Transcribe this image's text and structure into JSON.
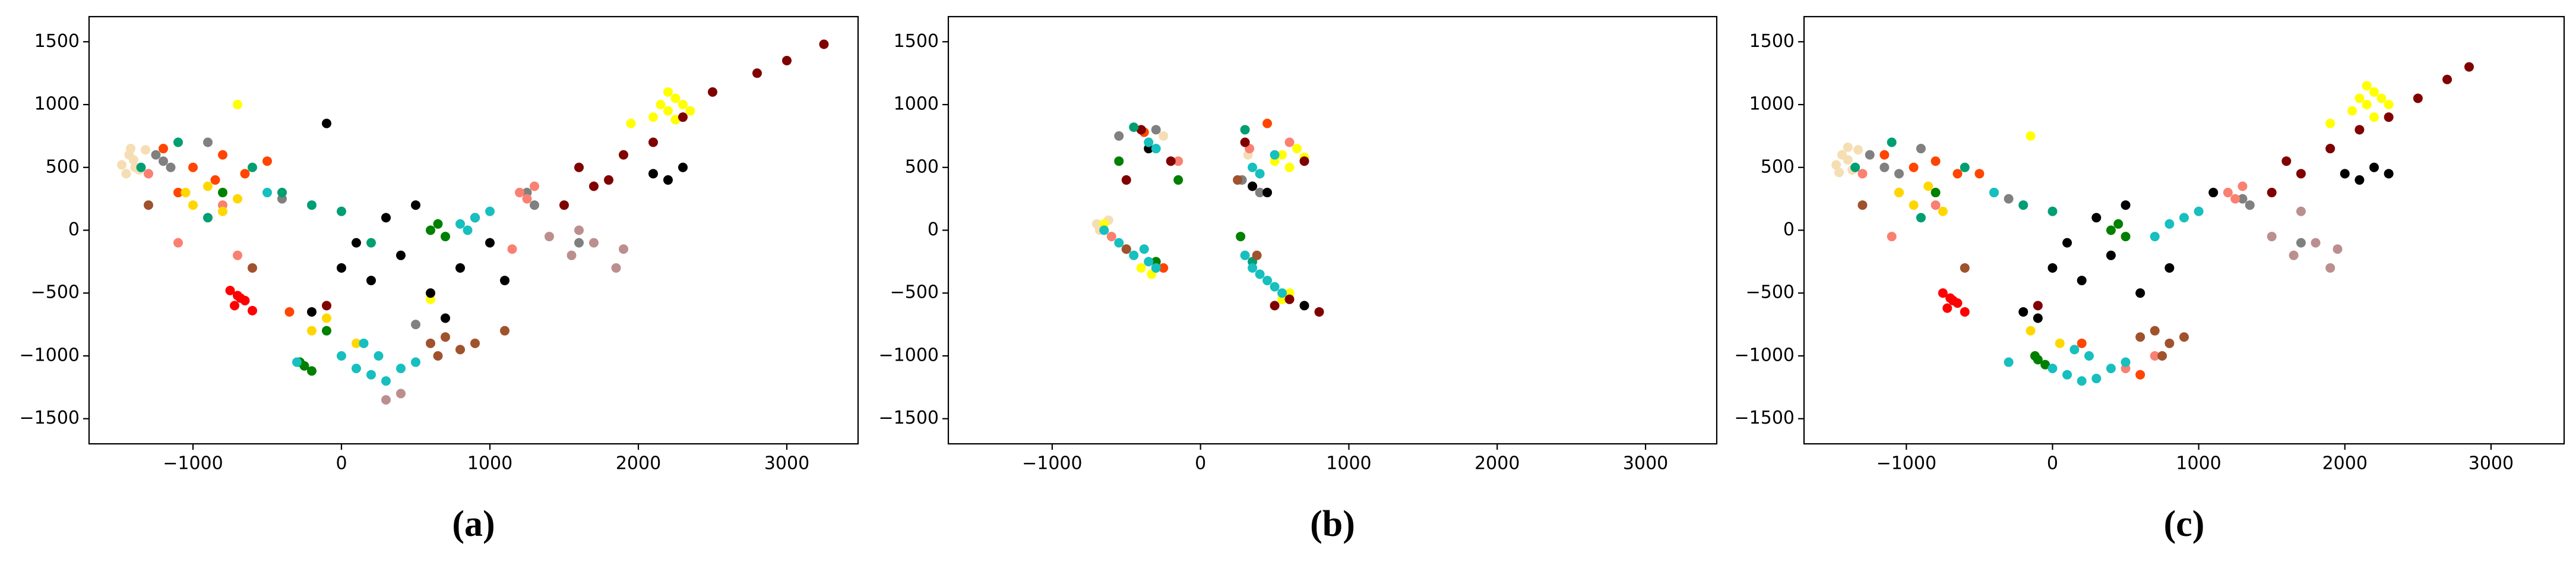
{
  "chart_data": [
    {
      "type": "scatter",
      "caption": "(a)",
      "xlim": [
        -1700,
        3480
      ],
      "ylim": [
        -1700,
        1700
      ],
      "xticks": [
        {
          "value": -1000,
          "label": "−1000"
        },
        0,
        1000,
        2000,
        3000
      ],
      "yticks": [
        {
          "value": -1500,
          "label": "−1500"
        },
        {
          "value": -1000,
          "label": "−1000"
        },
        {
          "value": -500,
          "label": "−500"
        },
        0,
        500,
        1000,
        1500
      ],
      "series": [
        {
          "color": "#f5deb3",
          "x": [
            -1480,
            -1430,
            -1400,
            -1360,
            -1320,
            -1450,
            -1390,
            -1420
          ],
          "values": [
            520,
            600,
            560,
            480,
            640,
            450,
            500,
            650
          ]
        },
        {
          "color": "#808080",
          "x": [
            -1250,
            -1200,
            -1150,
            -400,
            500,
            1250,
            1300,
            1600,
            -900
          ],
          "values": [
            600,
            550,
            500,
            250,
            -750,
            300,
            200,
            -100,
            700
          ]
        },
        {
          "color": "#fa8072",
          "x": [
            -1300,
            -1100,
            -800,
            -700,
            1200,
            1250,
            1300,
            1150
          ],
          "values": [
            450,
            -100,
            200,
            -200,
            300,
            250,
            350,
            -150
          ]
        },
        {
          "color": "#ff4500",
          "x": [
            -1200,
            -1000,
            -800,
            -650,
            -500,
            -850,
            -1100,
            -350
          ],
          "values": [
            650,
            500,
            600,
            450,
            550,
            400,
            300,
            -650
          ]
        },
        {
          "color": "#ffd700",
          "x": [
            -1050,
            -1000,
            -900,
            -800,
            -700,
            -100,
            -200,
            100
          ],
          "values": [
            300,
            200,
            350,
            150,
            250,
            -700,
            -800,
            -900
          ]
        },
        {
          "color": "#ffff00",
          "x": [
            2100,
            2150,
            2200,
            2250,
            2300,
            2350,
            2200,
            2250,
            1950,
            600,
            -700
          ],
          "values": [
            900,
            1000,
            950,
            1050,
            1000,
            950,
            1100,
            880,
            850,
            -550,
            1000
          ]
        },
        {
          "color": "#800000",
          "x": [
            1500,
            1700,
            1900,
            2100,
            2300,
            2500,
            2800,
            3000,
            3250,
            1600,
            1800,
            -100
          ],
          "values": [
            200,
            350,
            600,
            700,
            900,
            1100,
            1250,
            1350,
            1480,
            500,
            400,
            -600
          ]
        },
        {
          "color": "#000000",
          "x": [
            0,
            200,
            400,
            600,
            800,
            1000,
            300,
            500,
            700,
            2100,
            2200,
            2300,
            -200,
            100,
            900,
            1100,
            -100
          ],
          "values": [
            -300,
            -400,
            -200,
            -500,
            -300,
            -100,
            100,
            200,
            -700,
            450,
            400,
            500,
            -650,
            -100,
            100,
            -400,
            850
          ]
        },
        {
          "color": "#008000",
          "x": [
            -250,
            -200,
            -280,
            600,
            650,
            700,
            -800,
            -100
          ],
          "values": [
            -1080,
            -1120,
            -1050,
            0,
            50,
            -50,
            300,
            -800
          ]
        },
        {
          "color": "#009e73",
          "x": [
            -1350,
            -1100,
            -900,
            -600,
            -400,
            -200,
            0,
            200
          ],
          "values": [
            500,
            700,
            100,
            500,
            300,
            200,
            150,
            -100
          ]
        },
        {
          "color": "#a0522d",
          "x": [
            600,
            700,
            800,
            900,
            650,
            -1300,
            -600,
            1100
          ],
          "values": [
            -900,
            -850,
            -950,
            -900,
            -1000,
            200,
            -300,
            -800
          ]
        },
        {
          "color": "#bc8f8f",
          "x": [
            1400,
            1550,
            1700,
            1850,
            1900,
            300,
            400,
            1600
          ],
          "values": [
            -50,
            -200,
            -100,
            -300,
            -150,
            -1350,
            -1300,
            0
          ]
        },
        {
          "color": "#ff0000",
          "x": [
            -750,
            -700,
            -650,
            -720,
            -680,
            -600
          ],
          "values": [
            -480,
            -520,
            -560,
            -600,
            -540,
            -640
          ]
        },
        {
          "color": "#17bfbf",
          "x": [
            0,
            100,
            200,
            300,
            400,
            500,
            250,
            150,
            800,
            900,
            1000,
            850,
            -300,
            -500
          ],
          "values": [
            -1000,
            -1100,
            -1150,
            -1200,
            -1100,
            -1050,
            -1000,
            -900,
            50,
            100,
            150,
            0,
            -1050,
            300
          ]
        }
      ]
    },
    {
      "type": "scatter",
      "caption": "(b)",
      "xlim": [
        -1700,
        3480
      ],
      "ylim": [
        -1700,
        1700
      ],
      "xticks": [
        {
          "value": -1000,
          "label": "−1000"
        },
        0,
        1000,
        2000,
        3000
      ],
      "yticks": [
        {
          "value": -1500,
          "label": "−1500"
        },
        {
          "value": -1000,
          "label": "−1000"
        },
        {
          "value": -500,
          "label": "−500"
        },
        0,
        500,
        1000,
        1500
      ],
      "series": [
        {
          "color": "#f5deb3",
          "x": [
            -700,
            -680,
            -620,
            -250,
            320
          ],
          "values": [
            50,
            0,
            80,
            750,
            600
          ]
        },
        {
          "color": "#808080",
          "x": [
            -550,
            -300,
            280,
            400
          ],
          "values": [
            750,
            800,
            400,
            300
          ]
        },
        {
          "color": "#fa8072",
          "x": [
            -600,
            330,
            600,
            -150
          ],
          "values": [
            -50,
            650,
            700,
            550
          ]
        },
        {
          "color": "#ff4500",
          "x": [
            -380,
            450,
            -250
          ],
          "values": [
            780,
            850,
            -300
          ]
        },
        {
          "color": "#ffff00",
          "x": [
            -400,
            -330,
            500,
            550,
            600,
            650,
            700,
            -650,
            550,
            600
          ],
          "values": [
            -300,
            -350,
            550,
            600,
            500,
            650,
            580,
            50,
            -550,
            -500
          ]
        },
        {
          "color": "#800000",
          "x": [
            -400,
            -200,
            300,
            500,
            600,
            700,
            800,
            -500
          ],
          "values": [
            800,
            550,
            700,
            -600,
            -550,
            550,
            -650,
            400
          ]
        },
        {
          "color": "#000000",
          "x": [
            -350,
            350,
            450,
            700
          ],
          "values": [
            650,
            350,
            300,
            -600
          ]
        },
        {
          "color": "#008000",
          "x": [
            -300,
            -150,
            -550,
            270
          ],
          "values": [
            -250,
            400,
            550,
            -50
          ]
        },
        {
          "color": "#009e73",
          "x": [
            -450,
            300,
            -500,
            350
          ],
          "values": [
            820,
            800,
            -150,
            -250
          ]
        },
        {
          "color": "#a0522d",
          "x": [
            -500,
            250,
            380
          ],
          "values": [
            -150,
            400,
            -200
          ]
        },
        {
          "color": "#17bfbf",
          "x": [
            -650,
            -550,
            -450,
            -350,
            -300,
            -380,
            300,
            350,
            400,
            450,
            500,
            550,
            -350,
            -300,
            350,
            400,
            500
          ],
          "values": [
            0,
            -100,
            -200,
            -250,
            -300,
            -150,
            -200,
            -300,
            -350,
            -400,
            -450,
            -500,
            700,
            650,
            500,
            450,
            600
          ]
        }
      ]
    },
    {
      "type": "scatter",
      "caption": "(c)",
      "xlim": [
        -1700,
        3500
      ],
      "ylim": [
        -1700,
        1700
      ],
      "xticks": [
        {
          "value": -1000,
          "label": "−1000"
        },
        0,
        1000,
        2000,
        3000
      ],
      "yticks": [
        {
          "value": -1500,
          "label": "−1500"
        },
        {
          "value": -1000,
          "label": "−1000"
        },
        {
          "value": -500,
          "label": "−500"
        },
        0,
        500,
        1000,
        1500
      ],
      "series": [
        {
          "color": "#f5deb3",
          "x": [
            -1480,
            -1440,
            -1400,
            -1370,
            -1330,
            -1460,
            -1400
          ],
          "values": [
            520,
            600,
            560,
            480,
            640,
            460,
            660
          ]
        },
        {
          "color": "#808080",
          "x": [
            -1250,
            -1150,
            -1050,
            -300,
            1300,
            1350,
            1700,
            -900
          ],
          "values": [
            600,
            500,
            450,
            250,
            250,
            200,
            -100,
            650
          ]
        },
        {
          "color": "#fa8072",
          "x": [
            -1300,
            -1100,
            -800,
            1200,
            1250,
            1300,
            500,
            700
          ],
          "values": [
            450,
            -50,
            200,
            300,
            250,
            350,
            -1100,
            -1000
          ]
        },
        {
          "color": "#ff4500",
          "x": [
            -1150,
            -950,
            -800,
            -650,
            -500,
            -1050,
            200,
            600
          ],
          "values": [
            600,
            500,
            550,
            450,
            450,
            300,
            -900,
            -1150
          ]
        },
        {
          "color": "#ffd700",
          "x": [
            -1050,
            -950,
            -850,
            -750,
            -100,
            -150,
            50
          ],
          "values": [
            300,
            200,
            350,
            150,
            -700,
            -800,
            -900
          ]
        },
        {
          "color": "#ffff00",
          "x": [
            2050,
            2100,
            2150,
            2200,
            2250,
            2300,
            2150,
            2200,
            1900,
            -150
          ],
          "values": [
            950,
            1050,
            1000,
            1100,
            1050,
            1000,
            1150,
            900,
            850,
            750
          ]
        },
        {
          "color": "#800000",
          "x": [
            1500,
            1700,
            1900,
            2100,
            2300,
            2500,
            2700,
            2850,
            1600,
            -100
          ],
          "values": [
            300,
            450,
            650,
            800,
            900,
            1050,
            1200,
            1300,
            550,
            -600
          ]
        },
        {
          "color": "#000000",
          "x": [
            0,
            200,
            400,
            600,
            800,
            -200,
            300,
            500,
            2000,
            2100,
            2200,
            2300,
            -100,
            100,
            1100
          ],
          "values": [
            -300,
            -400,
            -200,
            -500,
            -300,
            -650,
            100,
            200,
            450,
            400,
            500,
            450,
            -700,
            -100,
            300
          ]
        },
        {
          "color": "#008000",
          "x": [
            -100,
            -50,
            -120,
            400,
            450,
            500,
            -800
          ],
          "values": [
            -1030,
            -1070,
            -1000,
            0,
            50,
            -50,
            300
          ]
        },
        {
          "color": "#009e73",
          "x": [
            -1350,
            -1100,
            -900,
            -600,
            -400,
            -200,
            0
          ],
          "values": [
            500,
            700,
            100,
            500,
            300,
            200,
            150
          ]
        },
        {
          "color": "#a0522d",
          "x": [
            600,
            700,
            800,
            900,
            750,
            -1300,
            -600
          ],
          "values": [
            -850,
            -800,
            -900,
            -850,
            -1000,
            200,
            -300
          ]
        },
        {
          "color": "#bc8f8f",
          "x": [
            1500,
            1650,
            1800,
            1900,
            1950,
            1700
          ],
          "values": [
            -50,
            -200,
            -100,
            -300,
            -150,
            150
          ]
        },
        {
          "color": "#ff0000",
          "x": [
            -750,
            -700,
            -650,
            -720,
            -680,
            -600
          ],
          "values": [
            -500,
            -540,
            -580,
            -620,
            -560,
            -650
          ]
        },
        {
          "color": "#17bfbf",
          "x": [
            0,
            100,
            200,
            300,
            400,
            500,
            250,
            150,
            700,
            800,
            900,
            1000,
            -300,
            -400
          ],
          "values": [
            -1100,
            -1150,
            -1200,
            -1180,
            -1100,
            -1050,
            -1000,
            -950,
            -50,
            50,
            100,
            150,
            -1050,
            300
          ]
        }
      ]
    }
  ]
}
